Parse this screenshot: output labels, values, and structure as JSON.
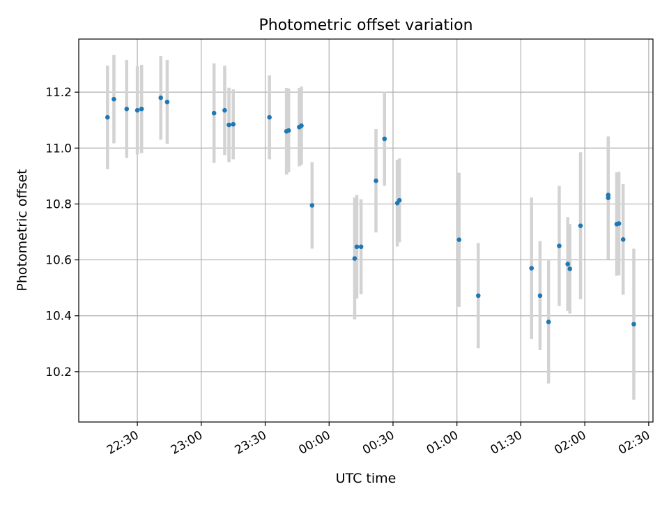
{
  "chart_data": {
    "type": "scatter",
    "title": "Photometric offset variation",
    "xlabel": "UTC time",
    "ylabel": "Photometric offset",
    "x_ticks": [
      "22:30",
      "23:00",
      "23:30",
      "00:00",
      "00:30",
      "01:00",
      "01:30",
      "02:00",
      "02:30"
    ],
    "y_ticks": [
      "10.2",
      "10.4",
      "10.6",
      "10.8",
      "11.0",
      "11.2"
    ],
    "x_range_minutes_past_2230": [
      -27.5,
      242
    ],
    "ylim": [
      10.02,
      11.39
    ],
    "grid": true,
    "marker_color": "#1f77b4",
    "errorbar_color": "#d3d3d3",
    "points": [
      {
        "time": "22:16",
        "y": 11.11,
        "err": 0.185
      },
      {
        "time": "22:19",
        "y": 11.175,
        "err": 0.158
      },
      {
        "time": "22:25",
        "y": 11.14,
        "err": 0.175
      },
      {
        "time": "22:30",
        "y": 11.135,
        "err": 0.158
      },
      {
        "time": "22:32",
        "y": 11.14,
        "err": 0.158
      },
      {
        "time": "22:41",
        "y": 11.18,
        "err": 0.15
      },
      {
        "time": "22:44",
        "y": 11.165,
        "err": 0.15
      },
      {
        "time": "23:06",
        "y": 11.125,
        "err": 0.178
      },
      {
        "time": "23:11",
        "y": 11.135,
        "err": 0.16
      },
      {
        "time": "23:13",
        "y": 11.083,
        "err": 0.133
      },
      {
        "time": "23:15",
        "y": 11.085,
        "err": 0.125
      },
      {
        "time": "23:32",
        "y": 11.11,
        "err": 0.15
      },
      {
        "time": "23:40",
        "y": 11.06,
        "err": 0.155
      },
      {
        "time": "23:41",
        "y": 11.063,
        "err": 0.15
      },
      {
        "time": "23:46",
        "y": 11.075,
        "err": 0.14
      },
      {
        "time": "23:47",
        "y": 11.08,
        "err": 0.14
      },
      {
        "time": "23:52",
        "y": 10.795,
        "err": 0.155
      },
      {
        "time": "00:12",
        "y": 10.605,
        "err": 0.218
      },
      {
        "time": "00:13",
        "y": 10.647,
        "err": 0.185
      },
      {
        "time": "00:15",
        "y": 10.647,
        "err": 0.17
      },
      {
        "time": "00:22",
        "y": 10.883,
        "err": 0.185
      },
      {
        "time": "00:26",
        "y": 11.033,
        "err": 0.168
      },
      {
        "time": "00:32",
        "y": 10.803,
        "err": 0.155
      },
      {
        "time": "00:33",
        "y": 10.813,
        "err": 0.15
      },
      {
        "time": "01:01",
        "y": 10.672,
        "err": 0.24
      },
      {
        "time": "01:10",
        "y": 10.472,
        "err": 0.188
      },
      {
        "time": "01:35",
        "y": 10.57,
        "err": 0.253
      },
      {
        "time": "01:39",
        "y": 10.472,
        "err": 0.195
      },
      {
        "time": "01:43",
        "y": 10.378,
        "err": 0.22
      },
      {
        "time": "01:48",
        "y": 10.65,
        "err": 0.215
      },
      {
        "time": "01:52",
        "y": 10.585,
        "err": 0.168
      },
      {
        "time": "01:53",
        "y": 10.568,
        "err": 0.16
      },
      {
        "time": "01:58",
        "y": 10.722,
        "err": 0.263
      },
      {
        "time": "02:11",
        "y": 10.822,
        "err": 0.22
      },
      {
        "time": "02:11",
        "y": 10.832,
        "err": 0.21
      },
      {
        "time": "02:15",
        "y": 10.728,
        "err": 0.185
      },
      {
        "time": "02:16",
        "y": 10.73,
        "err": 0.185
      },
      {
        "time": "02:18",
        "y": 10.673,
        "err": 0.198
      },
      {
        "time": "02:23",
        "y": 10.37,
        "err": 0.27
      }
    ]
  }
}
